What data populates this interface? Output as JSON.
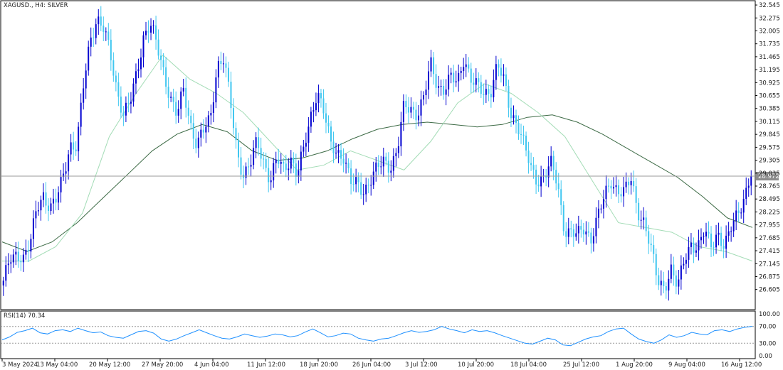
{
  "chart_data": [
    {
      "type": "candlestick",
      "title": "XAGUSD., H4:  SILVER",
      "symbol": "XAGUSD.",
      "timeframe": "H4",
      "description": "SILVER",
      "y_ticks": [
        "32.545",
        "32.275",
        "32.005",
        "31.735",
        "31.465",
        "31.195",
        "30.925",
        "30.655",
        "30.385",
        "30.115",
        "29.845",
        "29.575",
        "29.305",
        "29.035",
        "28.765",
        "28.495",
        "28.225",
        "27.955",
        "27.685",
        "27.415",
        "27.145",
        "26.875",
        "26.605"
      ],
      "ylim": [
        26.2,
        32.62
      ],
      "current_price": 28.972,
      "current_price_label": "28.972",
      "x_ticks": [
        "3 May 2024",
        "13 May 04:00",
        "20 May 12:00",
        "27 May 20:00",
        "4 Jun 04:00",
        "11 Jun 12:00",
        "18 Jun 20:00",
        "26 Jun 04:00",
        "3 Jul 12:00",
        "10 Jul 20:00",
        "18 Jul 04:00",
        "25 Jul 12:00",
        "1 Aug 20:00",
        "9 Aug 04:00",
        "16 Aug 12:00"
      ],
      "bull_color": "#0000d0",
      "bear_color": "#3fc6f0",
      "moving_average_colors": {
        "fast": "#a3dcb6",
        "slow": "#3c6a45"
      },
      "close_path": [
        {
          "x": "3 May 2024",
          "y": 26.7
        },
        {
          "x": "",
          "y": 27.3
        },
        {
          "x": "",
          "y": 27.4
        },
        {
          "x": "",
          "y": 27.2
        },
        {
          "x": "",
          "y": 27.5
        },
        {
          "x": "",
          "y": 28.4
        },
        {
          "x": "",
          "y": 28.6
        },
        {
          "x": "",
          "y": 28.2
        },
        {
          "x": "",
          "y": 28.5
        },
        {
          "x": "13 May 04:00",
          "y": 29.1
        },
        {
          "x": "",
          "y": 29.6
        },
        {
          "x": "",
          "y": 29.5
        },
        {
          "x": "",
          "y": 30.9
        },
        {
          "x": "",
          "y": 31.9
        },
        {
          "x": "",
          "y": 32.2
        },
        {
          "x": "20 May 12:00",
          "y": 32.0
        },
        {
          "x": "",
          "y": 31.6
        },
        {
          "x": "",
          "y": 30.8
        },
        {
          "x": "",
          "y": 30.2
        },
        {
          "x": "",
          "y": 30.5
        },
        {
          "x": "",
          "y": 31.2
        },
        {
          "x": "",
          "y": 31.9
        },
        {
          "x": "27 May 20:00",
          "y": 32.1
        },
        {
          "x": "",
          "y": 31.7
        },
        {
          "x": "",
          "y": 31.2
        },
        {
          "x": "",
          "y": 30.6
        },
        {
          "x": "",
          "y": 30.2
        },
        {
          "x": "",
          "y": 30.8
        },
        {
          "x": "",
          "y": 30.1
        },
        {
          "x": "",
          "y": 29.6
        },
        {
          "x": "4 Jun 04:00",
          "y": 29.9
        },
        {
          "x": "",
          "y": 30.2
        },
        {
          "x": "",
          "y": 31.3
        },
        {
          "x": "",
          "y": 31.4
        },
        {
          "x": "",
          "y": 30.5
        },
        {
          "x": "",
          "y": 29.5
        },
        {
          "x": "",
          "y": 29.0
        },
        {
          "x": "11 Jun 12:00",
          "y": 29.2
        },
        {
          "x": "",
          "y": 29.7
        },
        {
          "x": "",
          "y": 29.3
        },
        {
          "x": "",
          "y": 28.9
        },
        {
          "x": "",
          "y": 29.3
        },
        {
          "x": "",
          "y": 29.1
        },
        {
          "x": "",
          "y": 29.4
        },
        {
          "x": "",
          "y": 29.0
        },
        {
          "x": "",
          "y": 29.5
        },
        {
          "x": "18 Jun 20:00",
          "y": 30.2
        },
        {
          "x": "",
          "y": 30.8
        },
        {
          "x": "",
          "y": 30.3
        },
        {
          "x": "",
          "y": 29.6
        },
        {
          "x": "",
          "y": 29.5
        },
        {
          "x": "",
          "y": 29.4
        },
        {
          "x": "",
          "y": 28.8
        },
        {
          "x": "",
          "y": 28.8
        },
        {
          "x": "26 Jun 04:00",
          "y": 28.7
        },
        {
          "x": "",
          "y": 28.9
        },
        {
          "x": "",
          "y": 29.1
        },
        {
          "x": "",
          "y": 29.3
        },
        {
          "x": "",
          "y": 29.2
        },
        {
          "x": "",
          "y": 29.5
        },
        {
          "x": "",
          "y": 30.4
        },
        {
          "x": "",
          "y": 30.4
        },
        {
          "x": "3 Jul 12:00",
          "y": 30.3
        },
        {
          "x": "",
          "y": 30.6
        },
        {
          "x": "",
          "y": 31.3
        },
        {
          "x": "",
          "y": 30.9
        },
        {
          "x": "",
          "y": 30.8
        },
        {
          "x": "",
          "y": 31.0
        },
        {
          "x": "",
          "y": 30.9
        },
        {
          "x": "",
          "y": 31.5
        },
        {
          "x": "10 Jul 20:00",
          "y": 31.0
        },
        {
          "x": "",
          "y": 30.8
        },
        {
          "x": "",
          "y": 30.7
        },
        {
          "x": "",
          "y": 30.8
        },
        {
          "x": "",
          "y": 31.3
        },
        {
          "x": "",
          "y": 30.9
        },
        {
          "x": "",
          "y": 30.3
        },
        {
          "x": "18 Jul 04:00",
          "y": 30.1
        },
        {
          "x": "",
          "y": 29.6
        },
        {
          "x": "",
          "y": 29.1
        },
        {
          "x": "",
          "y": 28.9
        },
        {
          "x": "",
          "y": 29.0
        },
        {
          "x": "",
          "y": 29.2
        },
        {
          "x": "",
          "y": 28.8
        },
        {
          "x": "",
          "y": 27.9
        },
        {
          "x": "25 Jul 12:00",
          "y": 27.8
        },
        {
          "x": "",
          "y": 27.7
        },
        {
          "x": "",
          "y": 27.9
        },
        {
          "x": "",
          "y": 27.7
        },
        {
          "x": "",
          "y": 28.1
        },
        {
          "x": "",
          "y": 28.5
        },
        {
          "x": "",
          "y": 28.9
        },
        {
          "x": "",
          "y": 28.7
        },
        {
          "x": "",
          "y": 28.6
        },
        {
          "x": "",
          "y": 28.9
        },
        {
          "x": "1 Aug 20:00",
          "y": 28.3
        },
        {
          "x": "",
          "y": 28.0
        },
        {
          "x": "",
          "y": 27.4
        },
        {
          "x": "",
          "y": 26.8
        },
        {
          "x": "",
          "y": 26.7
        },
        {
          "x": "",
          "y": 27.0
        },
        {
          "x": "",
          "y": 26.6
        },
        {
          "x": "",
          "y": 27.3
        },
        {
          "x": "",
          "y": 27.6
        },
        {
          "x": "",
          "y": 27.4
        },
        {
          "x": "9 Aug 04:00",
          "y": 27.8
        },
        {
          "x": "",
          "y": 27.6
        },
        {
          "x": "",
          "y": 27.8
        },
        {
          "x": "",
          "y": 27.4
        },
        {
          "x": "",
          "y": 27.9
        },
        {
          "x": "",
          "y": 28.3
        },
        {
          "x": "",
          "y": 28.5
        },
        {
          "x": "16 Aug 12:00",
          "y": 28.97
        }
      ],
      "ma_slow": [
        27.6,
        27.4,
        27.6,
        28.0,
        28.5,
        29.0,
        29.5,
        29.85,
        30.05,
        29.9,
        29.5,
        29.3,
        29.35,
        29.5,
        29.75,
        29.95,
        30.05,
        30.1,
        30.05,
        30.0,
        30.05,
        30.2,
        30.25,
        30.1,
        29.85,
        29.55,
        29.25,
        28.95,
        28.55,
        28.1,
        27.9
      ],
      "ma_fast": [
        27.2,
        27.2,
        27.5,
        28.2,
        29.8,
        30.7,
        31.5,
        31.0,
        30.7,
        30.3,
        29.7,
        29.1,
        29.2,
        29.5,
        29.3,
        29.1,
        29.7,
        30.5,
        30.9,
        30.7,
        30.3,
        29.8,
        28.9,
        28.0,
        27.9,
        27.8,
        27.5,
        27.4,
        27.2
      ]
    },
    {
      "type": "line",
      "title": "RSI(14) 70.34",
      "ylim": [
        0,
        100
      ],
      "y_ticks": [
        "100.00",
        "70.00",
        "30.00",
        "0.00"
      ],
      "levels": [
        70,
        30
      ],
      "line_color": "#1e90ff",
      "values": [
        38,
        45,
        56,
        60,
        66,
        55,
        52,
        60,
        62,
        58,
        66,
        60,
        55,
        57,
        48,
        44,
        42,
        50,
        58,
        60,
        54,
        40,
        35,
        40,
        48,
        55,
        62,
        55,
        48,
        42,
        40,
        45,
        52,
        48,
        44,
        47,
        52,
        50,
        45,
        48,
        57,
        64,
        55,
        45,
        48,
        54,
        52,
        42,
        38,
        35,
        40,
        42,
        48,
        55,
        60,
        56,
        58,
        62,
        70,
        64,
        60,
        55,
        62,
        58,
        60,
        55,
        48,
        42,
        36,
        30,
        28,
        35,
        42,
        38,
        26,
        24,
        32,
        40,
        45,
        48,
        58,
        64,
        66,
        52,
        40,
        34,
        30,
        38,
        50,
        44,
        48,
        56,
        52,
        50,
        60,
        62,
        58,
        64,
        68,
        70.34
      ]
    }
  ]
}
